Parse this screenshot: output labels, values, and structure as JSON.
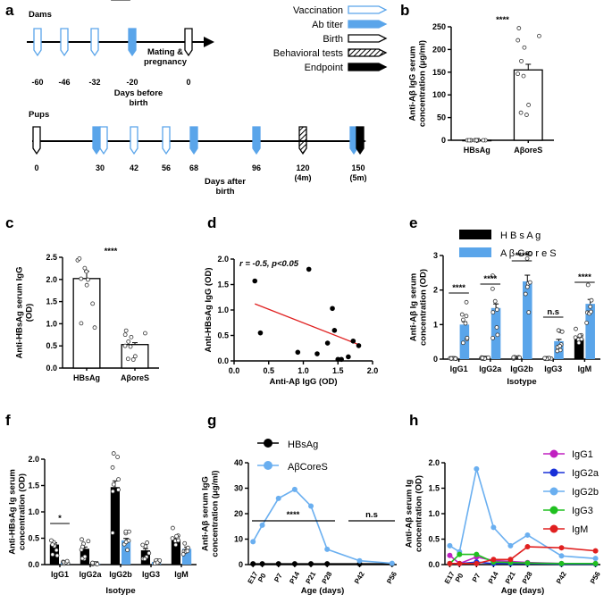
{
  "panel_labels": {
    "a": "a",
    "b": "b",
    "c": "c",
    "d": "d",
    "e": "e",
    "f": "f",
    "g": "g",
    "h": "h"
  },
  "colors": {
    "hbsag": "#000000",
    "acoress": "#5aa5ea",
    "line_blue": "#6aaff0",
    "igg1": "#c020c0",
    "igg2a": "#1830d8",
    "igg2b": "#6aaff0",
    "igg3": "#20c020",
    "igm": "#e02020",
    "fit": "#e02020"
  },
  "timeline": {
    "dams_label": "Dams",
    "dams_days": [
      "-60",
      "-46",
      "-32",
      "-20",
      "0"
    ],
    "dams_axis": "Days before\nbirth",
    "mating": "Mating &\npregnancy",
    "pups_label": "Pups",
    "pups_days": [
      "0",
      "30",
      "42",
      "56",
      "68",
      "96",
      "120\n(4m)",
      "150\n(5m)"
    ],
    "pups_axis": "Days after\nbirth",
    "legend": [
      "Vaccination",
      "Ab titer",
      "Birth",
      "Behavioral tests",
      "Endpoint"
    ]
  },
  "chart_data": [
    {
      "id": "b",
      "type": "bar",
      "ylabel": "Anti-Aβ IgG serum\nconcentration (μg/ml)",
      "ylim": [
        0,
        250
      ],
      "yticks": [
        "0",
        "50",
        "100",
        "150",
        "200",
        "250"
      ],
      "categories": [
        "HBsAg",
        "AβoreS"
      ],
      "values": [
        0,
        155
      ],
      "sig": "****"
    },
    {
      "id": "c",
      "type": "bar",
      "ylabel": "Anti-HBsAg serum IgG\n(OD)",
      "ylim": [
        0,
        2.5
      ],
      "yticks": [
        "0.0",
        "0.5",
        "1.0",
        "1.5",
        "2.0",
        "2.5"
      ],
      "categories": [
        "HBsAg",
        "AβoreS"
      ],
      "values": [
        2.02,
        0.53
      ],
      "sig": "****"
    },
    {
      "id": "d",
      "type": "scatter",
      "xlabel": "Anti-Aβ IgG (OD)",
      "ylabel": "Anti-HBsAg IgG (OD)",
      "annotation": "r = -0.5, p<0.05",
      "xlim": [
        0,
        2.0
      ],
      "ylim": [
        0,
        2.0
      ],
      "xticks": [
        "0.0",
        "0.5",
        "1.0",
        "1.5",
        "2.0"
      ],
      "yticks": [
        "0.0",
        "0.5",
        "1.0",
        "1.5",
        "2.0"
      ],
      "x": [
        0.3,
        0.38,
        0.92,
        1.08,
        1.2,
        1.35,
        1.42,
        1.45,
        1.5,
        1.55,
        1.65,
        1.72,
        1.8
      ],
      "y": [
        1.57,
        0.55,
        0.17,
        1.8,
        0.14,
        0.35,
        1.03,
        0.6,
        0.03,
        0.03,
        0.08,
        0.39,
        0.3
      ],
      "fit": [
        [
          0.3,
          1.12
        ],
        [
          1.8,
          0.32
        ]
      ]
    },
    {
      "id": "e",
      "type": "bar",
      "xlabel": "Isotype",
      "ylabel": "Anti-Aβ Ig serum\nconcentration (OD)",
      "ylim": [
        0,
        3
      ],
      "yticks": [
        "0",
        "1",
        "2",
        "3"
      ],
      "categories": [
        "IgG1",
        "IgG2a",
        "IgG2b",
        "IgG3",
        "IgM"
      ],
      "series": [
        {
          "name": "H B s A g",
          "values": [
            0.02,
            0.03,
            0.04,
            0.02,
            0.58
          ]
        },
        {
          "name": "A β C o r e S",
          "values": [
            1.0,
            1.48,
            2.25,
            0.52,
            1.6
          ]
        }
      ],
      "sig": [
        "****",
        "****",
        "****",
        "n.s",
        "****"
      ]
    },
    {
      "id": "f",
      "type": "bar",
      "xlabel": "Isotype",
      "ylabel": "Anti-HBsAg Ig serum\nconcentration (OD)",
      "ylim": [
        0,
        2.0
      ],
      "yticks": [
        "0.0",
        "0.5",
        "1.0",
        "1.5",
        "2.0"
      ],
      "categories": [
        "IgG1",
        "IgG2a",
        "IgG2b",
        "IgG3",
        "IgM"
      ],
      "series": [
        {
          "name": "HBsAg",
          "values": [
            0.38,
            0.3,
            1.47,
            0.27,
            0.46
          ]
        },
        {
          "name": "AβCoreS",
          "values": [
            0.04,
            0.02,
            0.46,
            0.05,
            0.3
          ]
        }
      ],
      "sig": [
        "*",
        "",
        "****",
        "",
        ""
      ]
    },
    {
      "id": "g",
      "type": "line",
      "xlabel": "Age (days)",
      "ylabel": "Anti-Aβ serum IgG\nconcentration (μg/ml)",
      "ylim": [
        0,
        40
      ],
      "yticks": [
        "0",
        "10",
        "20",
        "30",
        "40"
      ],
      "categories": [
        "E17",
        "P0",
        "P7",
        "P14",
        "P21",
        "P28",
        "P42",
        "P56"
      ],
      "x": [
        -4,
        0,
        7,
        14,
        21,
        28,
        42,
        56
      ],
      "series": [
        {
          "name": "HBsAg",
          "values": [
            0.3,
            0.3,
            0.3,
            0.3,
            0.3,
            0.3,
            0.3,
            0.3
          ]
        },
        {
          "name": "AβCoreS",
          "values": [
            9,
            15.5,
            26,
            29.5,
            23,
            6,
            1.5,
            0.5
          ]
        }
      ],
      "sig": [
        "****",
        "n.s"
      ]
    },
    {
      "id": "h",
      "type": "line",
      "xlabel": "Age (days)",
      "ylabel": "Anti-Aβ serum Ig\nconcentration (OD)",
      "ylim": [
        0,
        2.0
      ],
      "yticks": [
        "0.0",
        "0.5",
        "1.0",
        "1.5",
        "2.0"
      ],
      "categories": [
        "E17",
        "P0",
        "P7",
        "P14",
        "P21",
        "P28",
        "P42",
        "P56"
      ],
      "x": [
        -4,
        0,
        7,
        14,
        21,
        28,
        42,
        56
      ],
      "series": [
        {
          "name": "IgG1",
          "values": [
            0.18,
            0.02,
            0.15,
            0.08,
            0.06,
            0.04,
            0.02,
            0.02
          ]
        },
        {
          "name": "IgG2a",
          "values": [
            0.02,
            0.02,
            0.05,
            0.02,
            0.02,
            0.02,
            0.01,
            0.01
          ]
        },
        {
          "name": "IgG2b",
          "values": [
            0.37,
            0.25,
            1.88,
            0.73,
            0.37,
            0.58,
            0.17,
            0.12
          ]
        },
        {
          "name": "IgG3",
          "values": [
            0.02,
            0.2,
            0.2,
            0.05,
            0.04,
            0.03,
            0.02,
            0.02
          ]
        },
        {
          "name": "IgM",
          "values": [
            0.02,
            0.02,
            0.02,
            0.1,
            0.1,
            0.35,
            0.33,
            0.27
          ]
        }
      ]
    }
  ]
}
